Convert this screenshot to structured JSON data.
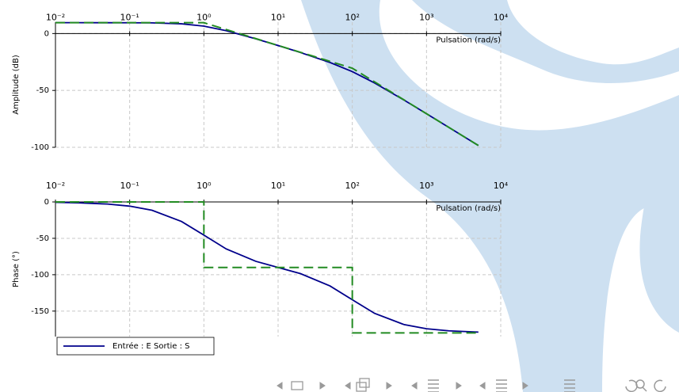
{
  "chart_data": [
    {
      "type": "line",
      "xscale": "log",
      "grid": true,
      "xlabel": "Pulsation (rad/s)",
      "ylabel": "Amplitude (dB)",
      "xlim": [
        0.01,
        10000
      ],
      "ylim": [
        -100,
        10
      ],
      "xticks": [
        {
          "value": 0.01,
          "label": "10⁻²"
        },
        {
          "value": 0.1,
          "label": "10⁻¹"
        },
        {
          "value": 1,
          "label": "10⁰"
        },
        {
          "value": 10,
          "label": "10¹"
        },
        {
          "value": 100,
          "label": "10²"
        },
        {
          "value": 1000,
          "label": "10³"
        },
        {
          "value": 10000,
          "label": "10⁴"
        }
      ],
      "yticks": [
        -100,
        -50,
        0
      ],
      "series": [
        {
          "color": "#00008b",
          "dash": false,
          "x": [
            0.01,
            0.02,
            0.05,
            0.1,
            0.2,
            0.5,
            1,
            2,
            5,
            10,
            20,
            50,
            100,
            200,
            500,
            1000,
            2000,
            5000
          ],
          "values": [
            9.54,
            9.54,
            9.53,
            9.5,
            9.37,
            8.57,
            6.53,
            2.55,
            -4.62,
            -10.54,
            -16.66,
            -25.41,
            -33.47,
            -43.47,
            -58.59,
            -70.5,
            -82.51,
            -98.42
          ]
        },
        {
          "color": "#228b22",
          "dash": true,
          "x": [
            0.01,
            1,
            100,
            5000
          ],
          "values": [
            9.54,
            9.54,
            -30.46,
            -98.44
          ]
        }
      ]
    },
    {
      "type": "line",
      "xscale": "log",
      "grid": true,
      "legend": "lower left",
      "xlabel": "Pulsation (rad/s)",
      "ylabel": "Phase (°)",
      "xlim": [
        0.01,
        10000
      ],
      "ylim": [
        -185,
        0
      ],
      "xticks": [
        {
          "value": 0.01,
          "label": "10⁻²"
        },
        {
          "value": 0.1,
          "label": "10⁻¹"
        },
        {
          "value": 1,
          "label": "10⁰"
        },
        {
          "value": 10,
          "label": "10¹"
        },
        {
          "value": 100,
          "label": "10²"
        },
        {
          "value": 1000,
          "label": "10³"
        },
        {
          "value": 10000,
          "label": "10⁴"
        }
      ],
      "yticks": [
        -150,
        -100,
        -50,
        0
      ],
      "series": [
        {
          "name": "Entrée : E Sortie : S",
          "color": "#00008b",
          "dash": false,
          "x": [
            0.01,
            0.02,
            0.05,
            0.1,
            0.2,
            0.5,
            1,
            2,
            5,
            10,
            20,
            50,
            100,
            200,
            500,
            1000,
            2000,
            5000
          ],
          "values": [
            -0.58,
            -1.16,
            -2.89,
            -5.77,
            -11.42,
            -26.86,
            -45.57,
            -64.58,
            -81.55,
            -90,
            -98.45,
            -115.42,
            -134.43,
            -153.14,
            -168.58,
            -174.23,
            -177.11,
            -178.84
          ]
        },
        {
          "color": "#228b22",
          "dash": true,
          "x": [
            0.01,
            1,
            1,
            100,
            100,
            5000
          ],
          "values": [
            0,
            0,
            -90,
            -90,
            -180,
            -180
          ]
        }
      ]
    }
  ]
}
